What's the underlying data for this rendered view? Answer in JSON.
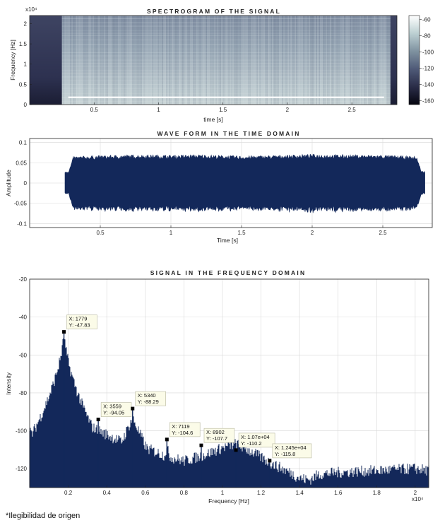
{
  "chart_data": [
    {
      "type": "heatmap",
      "title": "SPECTROGRAM OF THE SIGNAL",
      "xlabel": "time [s]",
      "ylabel": "Frequency [Hz]",
      "y_exponent": "x10⁴",
      "xlim": [
        0,
        2.85
      ],
      "ylim": [
        0,
        2.2
      ],
      "xticks": [
        0.5,
        1,
        1.5,
        2,
        2.5
      ],
      "xtick_labels": [
        "0.5",
        "1",
        "1.5",
        "2",
        "2.5"
      ],
      "yticks": [
        0,
        0.5,
        1,
        1.5,
        2
      ],
      "ytick_labels": [
        "0",
        "0.5",
        "1",
        "1.5",
        "2"
      ],
      "colorbar_ticks": [
        -60,
        -80,
        -100,
        -120,
        -140,
        -160
      ],
      "colorbar_range": [
        -165,
        -55
      ],
      "signal_span": [
        0.25,
        2.8
      ],
      "tone_frequency": 0.18,
      "colormap": [
        "#0c0d1a",
        "#3a3f5c",
        "#6f7d90",
        "#a9b8be",
        "#e4ecec",
        "#ffffff"
      ]
    },
    {
      "type": "area",
      "title": "WAVE FORM IN THE TIME DOMAIN",
      "xlabel": "Time [s]",
      "ylabel": "Amplitude",
      "xlim": [
        0,
        2.85
      ],
      "ylim": [
        -0.11,
        0.11
      ],
      "xticks": [
        0.5,
        1,
        1.5,
        2,
        2.5
      ],
      "xtick_labels": [
        "0.5",
        "1",
        "1.5",
        "2",
        "2.5"
      ],
      "yticks": [
        0.1,
        0.05,
        0,
        -0.05,
        -0.1
      ],
      "ytick_labels": [
        "0.1",
        "0.05",
        "0",
        "-0.05",
        "-0.1"
      ],
      "grid": true,
      "color": "#13285a",
      "signal_span": [
        0.25,
        2.8
      ],
      "envelope": {
        "t": [
          0.25,
          0.5,
          0.8,
          1.0,
          1.2,
          1.5,
          1.8,
          2.0,
          2.2,
          2.5,
          2.8
        ],
        "amp": [
          0.062,
          0.065,
          0.067,
          0.066,
          0.067,
          0.064,
          0.066,
          0.068,
          0.067,
          0.066,
          0.062
        ]
      }
    },
    {
      "type": "line",
      "title": "SIGNAL IN THE FREQUENCY DOMAIN",
      "xlabel": "Frequency [Hz]",
      "ylabel": "Intensity",
      "x_exponent": "x10⁴",
      "xlim": [
        0,
        2.07
      ],
      "ylim": [
        -130,
        -20
      ],
      "xticks": [
        0.2,
        0.4,
        0.6,
        0.8,
        1,
        1.2,
        1.4,
        1.6,
        1.8,
        2
      ],
      "xtick_labels": [
        "0.2",
        "0.4",
        "0.6",
        "0.8",
        "1",
        "1.2",
        "1.4",
        "1.6",
        "1.8",
        "2"
      ],
      "yticks": [
        -20,
        -40,
        -60,
        -80,
        -100,
        -120
      ],
      "ytick_labels": [
        "-20",
        "-40",
        "-60",
        "-80",
        "-100",
        "-120"
      ],
      "grid": true,
      "color": "#13285a",
      "peaks": [
        {
          "x": 0.1779,
          "y": -47.83,
          "label_x": "X: 1779",
          "label_y": "Y: -47.83"
        },
        {
          "x": 0.3559,
          "y": -94.05,
          "label_x": "X: 3559",
          "label_y": "Y: -94.05"
        },
        {
          "x": 0.534,
          "y": -88.29,
          "label_x": "X: 5340",
          "label_y": "Y: -88.29"
        },
        {
          "x": 0.7119,
          "y": -104.6,
          "label_x": "X: 7119",
          "label_y": "Y: -104.6"
        },
        {
          "x": 0.8902,
          "y": -107.7,
          "label_x": "X: 8902",
          "label_y": "Y: -107.7"
        },
        {
          "x": 1.07,
          "y": -110.2,
          "label_x": "X: 1.07e+04",
          "label_y": "Y: -110.2"
        },
        {
          "x": 1.245,
          "y": -115.8,
          "label_x": "X: 1.245e+04",
          "label_y": "Y: -115.8"
        }
      ],
      "floor": {
        "x": [
          0.0,
          0.1,
          0.17,
          0.2,
          0.3,
          0.4,
          0.5,
          0.6,
          0.7,
          0.8,
          0.9,
          1.0,
          1.07,
          1.15,
          1.25,
          1.35,
          1.4,
          1.45,
          1.5,
          1.6,
          1.8,
          2.0,
          2.07
        ],
        "y": [
          -104,
          -107,
          -90,
          -96,
          -100,
          -105,
          -110,
          -112,
          -116,
          -119,
          -116,
          -112,
          -110,
          -114,
          -120,
          -125,
          -128,
          -129,
          -126,
          -125,
          -124,
          -123,
          -124
        ]
      }
    }
  ],
  "note": "*Ilegibilidad de origen"
}
